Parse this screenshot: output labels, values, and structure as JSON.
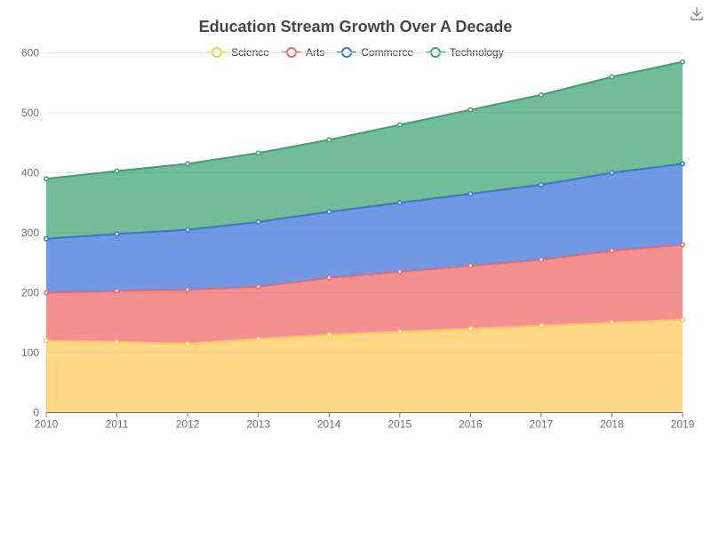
{
  "chart_data": {
    "type": "area",
    "stacked": true,
    "title": "Education Stream Growth Over A Decade",
    "xlabel": "",
    "ylabel": "",
    "categories": [
      "2010",
      "2011",
      "2012",
      "2013",
      "2014",
      "2015",
      "2016",
      "2017",
      "2018",
      "2019"
    ],
    "ylim": [
      0,
      600
    ],
    "y_ticks": [
      0,
      100,
      200,
      300,
      400,
      500,
      600
    ],
    "grid": true,
    "legend_position": "top-center",
    "series": [
      {
        "name": "Science",
        "color": "#fac858",
        "values": [
          120,
          118,
          115,
          123,
          130,
          135,
          140,
          145,
          150,
          155
        ]
      },
      {
        "name": "Arts",
        "color": "#ee6666",
        "values": [
          80,
          85,
          90,
          87,
          95,
          100,
          105,
          110,
          120,
          125
        ]
      },
      {
        "name": "Commerce",
        "color": "#3a72d8",
        "values": [
          90,
          95,
          100,
          108,
          110,
          115,
          120,
          125,
          130,
          135
        ]
      },
      {
        "name": "Technology",
        "color": "#3ba272",
        "values": [
          100,
          105,
          110,
          115,
          120,
          130,
          140,
          150,
          160,
          170
        ]
      }
    ]
  },
  "toolbar": {
    "download_icon": "download-icon"
  }
}
